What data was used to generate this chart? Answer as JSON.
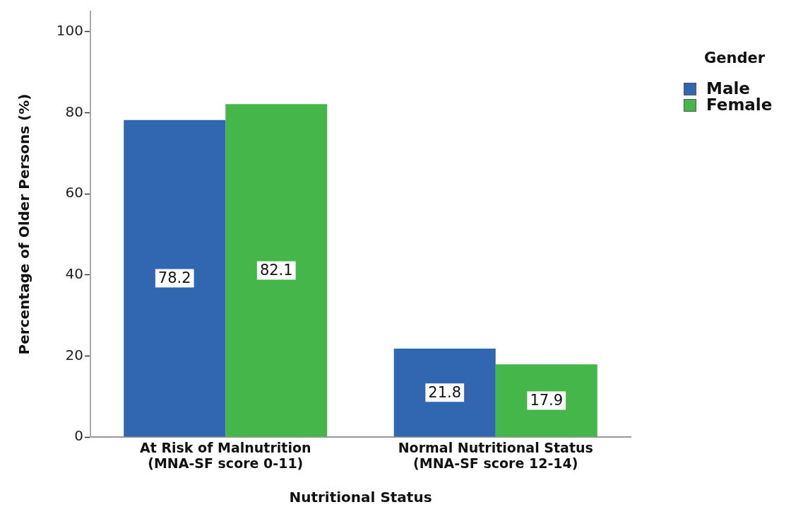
{
  "chart_data": {
    "type": "bar",
    "xlabel": "Nutritional Status",
    "ylabel": "Percentage of Older Persons (%)",
    "legend_title": "Gender",
    "categories": [
      "At Risk of Malnutrition\n(MNA-SF score 0-11)",
      "Normal Nutritional Status\n(MNA-SF score 12-14)"
    ],
    "series": [
      {
        "name": "Male",
        "color": "#3067b0",
        "values": [
          78.2,
          21.8
        ]
      },
      {
        "name": "Female",
        "color": "#45b649",
        "values": [
          82.1,
          17.9
        ]
      }
    ],
    "ylim": [
      0,
      105
    ],
    "yticks": [
      0,
      20,
      40,
      60,
      80,
      100
    ],
    "data_labels": true,
    "legend": "right"
  }
}
